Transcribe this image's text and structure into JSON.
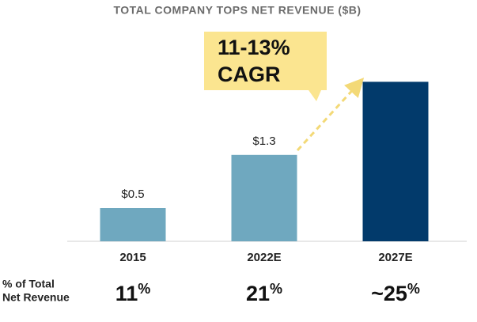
{
  "chart_data": {
    "type": "bar",
    "title": "TOTAL COMPANY TOPS NET REVENUE ($B)",
    "categories": [
      "2015",
      "2022E",
      "2027E"
    ],
    "values": [
      0.5,
      1.3,
      2.4
    ],
    "value_labels": [
      "$0.5",
      "$1.3",
      null
    ],
    "colors": [
      "#6fa8bf",
      "#6fa8bf",
      "#023a6b"
    ],
    "annotation": [
      "11-13%",
      "CAGR"
    ],
    "row_label": [
      "% of Total",
      "Net Revenue"
    ],
    "row_values": [
      "11%",
      "21%",
      "~25%"
    ]
  }
}
